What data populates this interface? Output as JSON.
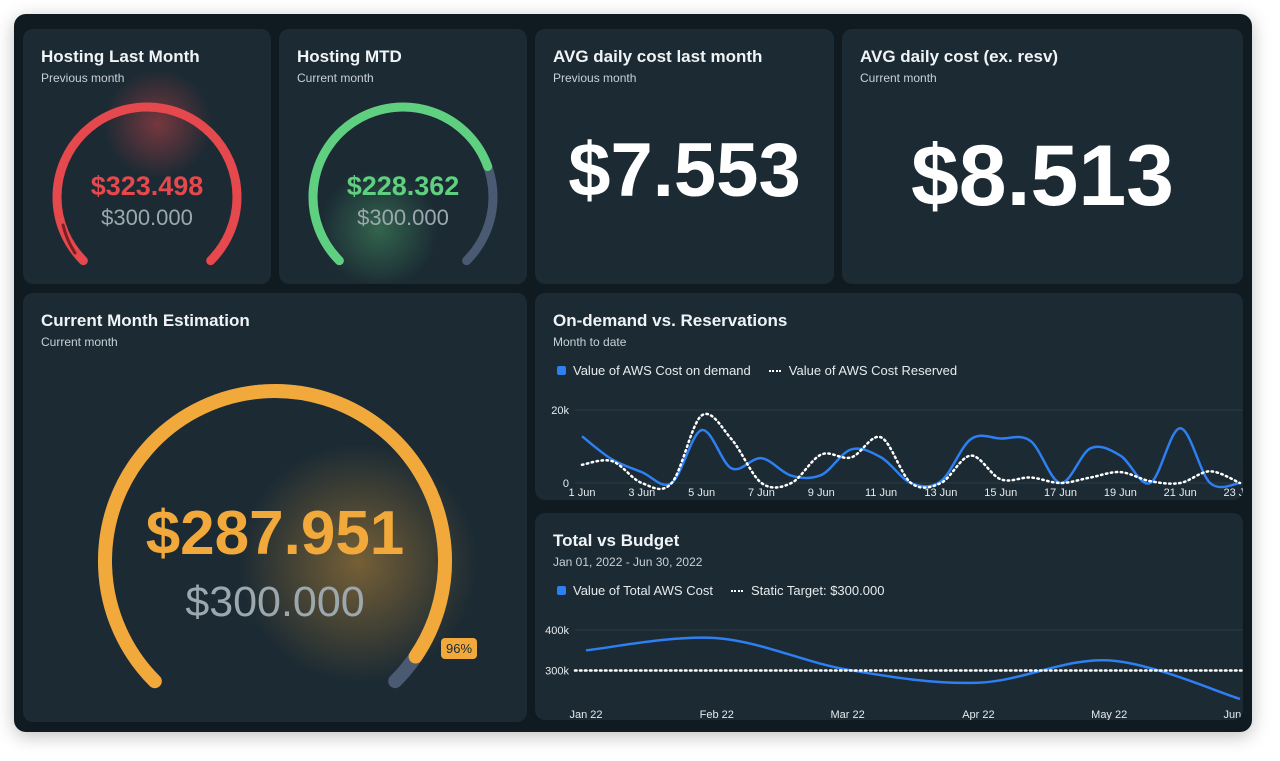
{
  "cards": {
    "hosting_last_month": {
      "title": "Hosting Last Month",
      "subtitle": "Previous month",
      "value": "$323.498",
      "target": "$300.000",
      "fraction": 1.0,
      "color": "#e5484d"
    },
    "hosting_mtd": {
      "title": "Hosting MTD",
      "subtitle": "Current month",
      "value": "$228.362",
      "target": "$300.000",
      "fraction": 0.76,
      "color": "#5fd07f"
    },
    "avg_daily_last": {
      "title": "AVG daily cost last month",
      "subtitle": "Previous month",
      "value": "$7.553"
    },
    "avg_daily_resv": {
      "title": "AVG daily cost (ex. resv)",
      "subtitle": "Current month",
      "value": "$8.513"
    },
    "estimation": {
      "title": "Current Month Estimation",
      "subtitle": "Current month",
      "value": "$287.951",
      "target": "$300.000",
      "percent_label": "96%",
      "fraction": 0.96,
      "color": "#f2a93b"
    }
  },
  "colors": {
    "track": "#4a5a73",
    "accent_blue": "#2d7ff2",
    "dotted": "#ffffff"
  },
  "chart_data": [
    {
      "type": "line",
      "title": "On-demand vs. Reservations",
      "subtitle": "Month to date",
      "x": [
        "1 Jun",
        "2 Jun",
        "3 Jun",
        "4 Jun",
        "5 Jun",
        "6 Jun",
        "7 Jun",
        "8 Jun",
        "9 Jun",
        "10 Jun",
        "11 Jun",
        "12 Jun",
        "13 Jun",
        "14 Jun",
        "15 Jun",
        "16 Jun",
        "17 Jun",
        "18 Jun",
        "19 Jun",
        "20 Jun",
        "21 Jun",
        "22 Jun",
        "23 Jun"
      ],
      "x_tick_labels": [
        "1 Jun",
        "3 Jun",
        "5 Jun",
        "7 Jun",
        "9 Jun",
        "11 Jun",
        "13 Jun",
        "15 Jun",
        "17 Jun",
        "19 Jun",
        "21 Jun",
        "23 Jun"
      ],
      "y_tick_labels": [
        "20k",
        "0"
      ],
      "ylim": [
        0,
        20000
      ],
      "grid": true,
      "legend": "top-left",
      "series": [
        {
          "name": "Value of AWS Cost on demand",
          "style": "solid",
          "color": "#2d7ff2",
          "values": [
            12800,
            6500,
            3000,
            0,
            14500,
            4000,
            6800,
            2000,
            2200,
            9200,
            7000,
            0,
            500,
            12000,
            12200,
            11500,
            0,
            9500,
            7500,
            0,
            15000,
            0,
            0
          ]
        },
        {
          "name": "Value of AWS Cost Reserved",
          "style": "dotted",
          "color": "#ffffff",
          "values": [
            5000,
            6000,
            0,
            0,
            18500,
            12000,
            0,
            0,
            7800,
            7000,
            12500,
            0,
            0,
            7500,
            1000,
            1500,
            0,
            1500,
            3000,
            500,
            0,
            3200,
            0
          ]
        }
      ]
    },
    {
      "type": "line",
      "title": "Total vs Budget",
      "subtitle": "Jan 01, 2022 - Jun 30, 2022",
      "x": [
        "Jan 22",
        "Feb 22",
        "Mar 22",
        "Apr 22",
        "May 22",
        "Jun 22"
      ],
      "y_tick_labels": [
        "400k",
        "300k"
      ],
      "ylim": [
        220000,
        400000
      ],
      "grid": true,
      "legend": "top-left",
      "series": [
        {
          "name": "Value of Total AWS Cost",
          "style": "solid",
          "color": "#2d7ff2",
          "values": [
            350000,
            380000,
            302000,
            270000,
            325000,
            230000
          ]
        },
        {
          "name": "Static Target: $300.000",
          "style": "dotted",
          "color": "#ffffff",
          "values": [
            300000,
            300000,
            300000,
            300000,
            300000,
            300000
          ]
        }
      ]
    }
  ]
}
